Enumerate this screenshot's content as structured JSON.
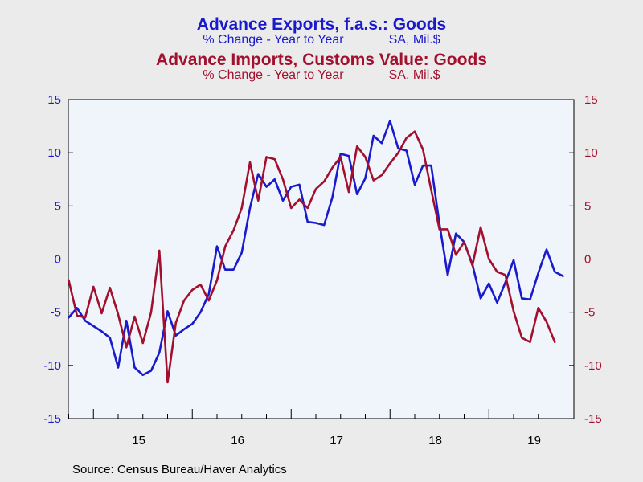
{
  "titles": {
    "exports_title": "Advance Exports, f.a.s.: Goods",
    "exports_sub_left": "% Change - Year to Year",
    "exports_sub_right": "SA, Mil.$",
    "imports_title": "Advance Imports, Customs Value: Goods",
    "imports_sub_left": "% Change - Year to Year",
    "imports_sub_right": "SA, Mil.$"
  },
  "source": "Source:  Census Bureau/Haver Analytics",
  "colors": {
    "exports": "#1a1acd",
    "imports": "#a3102d",
    "plot_bg": "#f0f5fc",
    "page_bg": "#ebebeb"
  },
  "chart_data": {
    "type": "line",
    "x_ticks": [
      "15",
      "16",
      "17",
      "18",
      "19"
    ],
    "ylim": [
      -15,
      15
    ],
    "yticks": [
      -15,
      -10,
      -5,
      0,
      5,
      10,
      15
    ],
    "ytick_labels": [
      "-15",
      "-10",
      "-5",
      "0",
      "5",
      "10",
      "15"
    ],
    "grid": false,
    "zero_line": true,
    "dual_axis": true,
    "series": [
      {
        "name": "Advance Exports, f.a.s.: Goods",
        "axis": "left",
        "values": [
          -5.5,
          -4.6,
          -5.8,
          -6.3,
          -6.8,
          -7.4,
          -10.2,
          -5.8,
          -10.2,
          -10.9,
          -10.5,
          -8.8,
          -4.9,
          -7.2,
          -6.6,
          -6.1,
          -5.0,
          -3.3,
          1.2,
          -1.0,
          -1.0,
          0.6,
          4.8,
          8.0,
          6.8,
          7.5,
          5.5,
          6.8,
          7.0,
          3.5,
          3.4,
          3.2,
          5.8,
          9.9,
          9.7,
          6.1,
          7.6,
          11.6,
          10.9,
          13.0,
          10.4,
          10.2,
          7.0,
          8.8,
          8.8,
          3.3,
          -1.5,
          2.4,
          1.6,
          -0.5,
          -3.7,
          -2.3,
          -4.1,
          -2.2,
          -0.1,
          -3.7,
          -3.8,
          -1.3,
          0.9,
          -1.2,
          -1.6
        ]
      },
      {
        "name": "Advance Imports, Customs Value: Goods",
        "axis": "right",
        "values": [
          -2.0,
          -5.3,
          -5.5,
          -2.6,
          -5.1,
          -2.7,
          -5.2,
          -8.3,
          -5.4,
          -7.9,
          -5.0,
          0.8,
          -11.6,
          -6.0,
          -3.9,
          -2.9,
          -2.4,
          -3.9,
          -2.0,
          1.2,
          2.7,
          4.8,
          9.1,
          5.5,
          9.6,
          9.4,
          7.5,
          4.8,
          5.6,
          4.8,
          6.6,
          7.3,
          8.6,
          9.6,
          6.3,
          10.6,
          9.6,
          7.4,
          7.9,
          9.0,
          10.0,
          11.4,
          12.0,
          10.3,
          6.5,
          2.8,
          2.8,
          0.4,
          1.6,
          -0.6,
          3.0,
          0.0,
          -1.2,
          -1.5,
          -4.9,
          -7.4,
          -7.8,
          -4.6,
          -5.9,
          -7.8
        ]
      }
    ]
  }
}
